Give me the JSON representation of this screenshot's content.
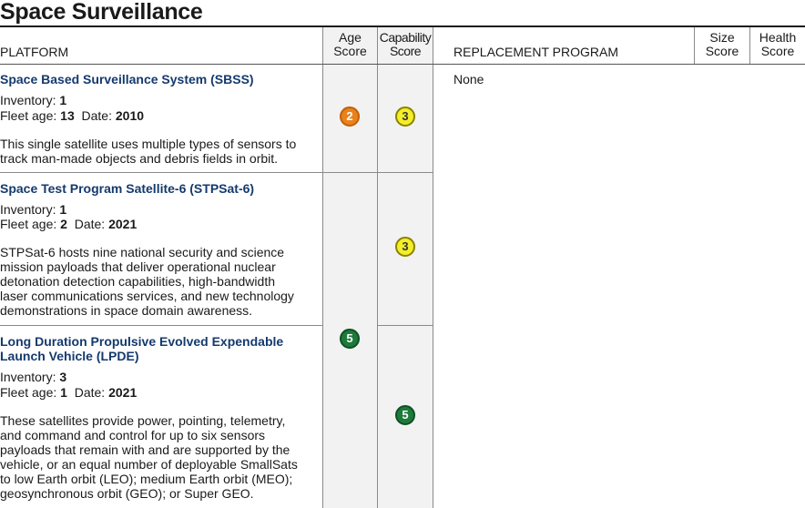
{
  "title": "Space Surveillance",
  "headers": {
    "platform": "PLATFORM",
    "age_line1": "Age",
    "age_line2": "Score",
    "capability_line1": "Capability",
    "capability_line2": "Score",
    "replacement": "REPLACEMENT PROGRAM",
    "size_line1": "Size",
    "size_line2": "Score",
    "health_line1": "Health",
    "health_line2": "Score"
  },
  "labels": {
    "inventory": "Inventory: ",
    "fleet_age": "Fleet age: ",
    "date": "Date: "
  },
  "platforms": [
    {
      "name": "Space Based Surveillance System (SBSS)",
      "inventory": "1",
      "fleet_age": "13",
      "date": "2010",
      "desc_lines": [
        "This single satellite uses multiple types of sensors to",
        "track man-made objects and debris fields in orbit."
      ],
      "age_score": "2",
      "capability_score": "3"
    },
    {
      "name": "Space Test Program Satellite-6 (STPSat-6)",
      "inventory": "1",
      "fleet_age": "2",
      "date": "2021",
      "desc_lines": [
        "STPSat-6 hosts nine national security and science",
        "mission payloads that deliver operational nuclear",
        "detonation detection capabilities, high-bandwidth",
        "laser communications services, and new technology",
        "demonstrations in space domain awareness."
      ],
      "capability_score": "3"
    },
    {
      "name_lines": [
        "Long Duration Propulsive Evolved Expendable",
        "Launch Vehicle (LPDE)"
      ],
      "inventory": "3",
      "fleet_age": "1",
      "date": "2021",
      "desc_lines": [
        "These satellites provide power, pointing, telemetry,",
        "and command and control for up to six sensors",
        "payloads that remain with and are supported by the",
        "vehicle, or an equal number of deployable SmallSats",
        "to low Earth orbit (LEO); medium Earth orbit (MEO);",
        "geosynchronous orbit (GEO); or Super GEO."
      ],
      "capability_score": "5"
    }
  ],
  "shared_age_score": "5",
  "replacement_program": "None",
  "colors": {
    "score_2": "#e8821e",
    "score_3": "#f4ee2a",
    "score_5": "#1e7a3a",
    "platform_name": "#143a6e",
    "score_column_shade": "#f1f2f1"
  }
}
